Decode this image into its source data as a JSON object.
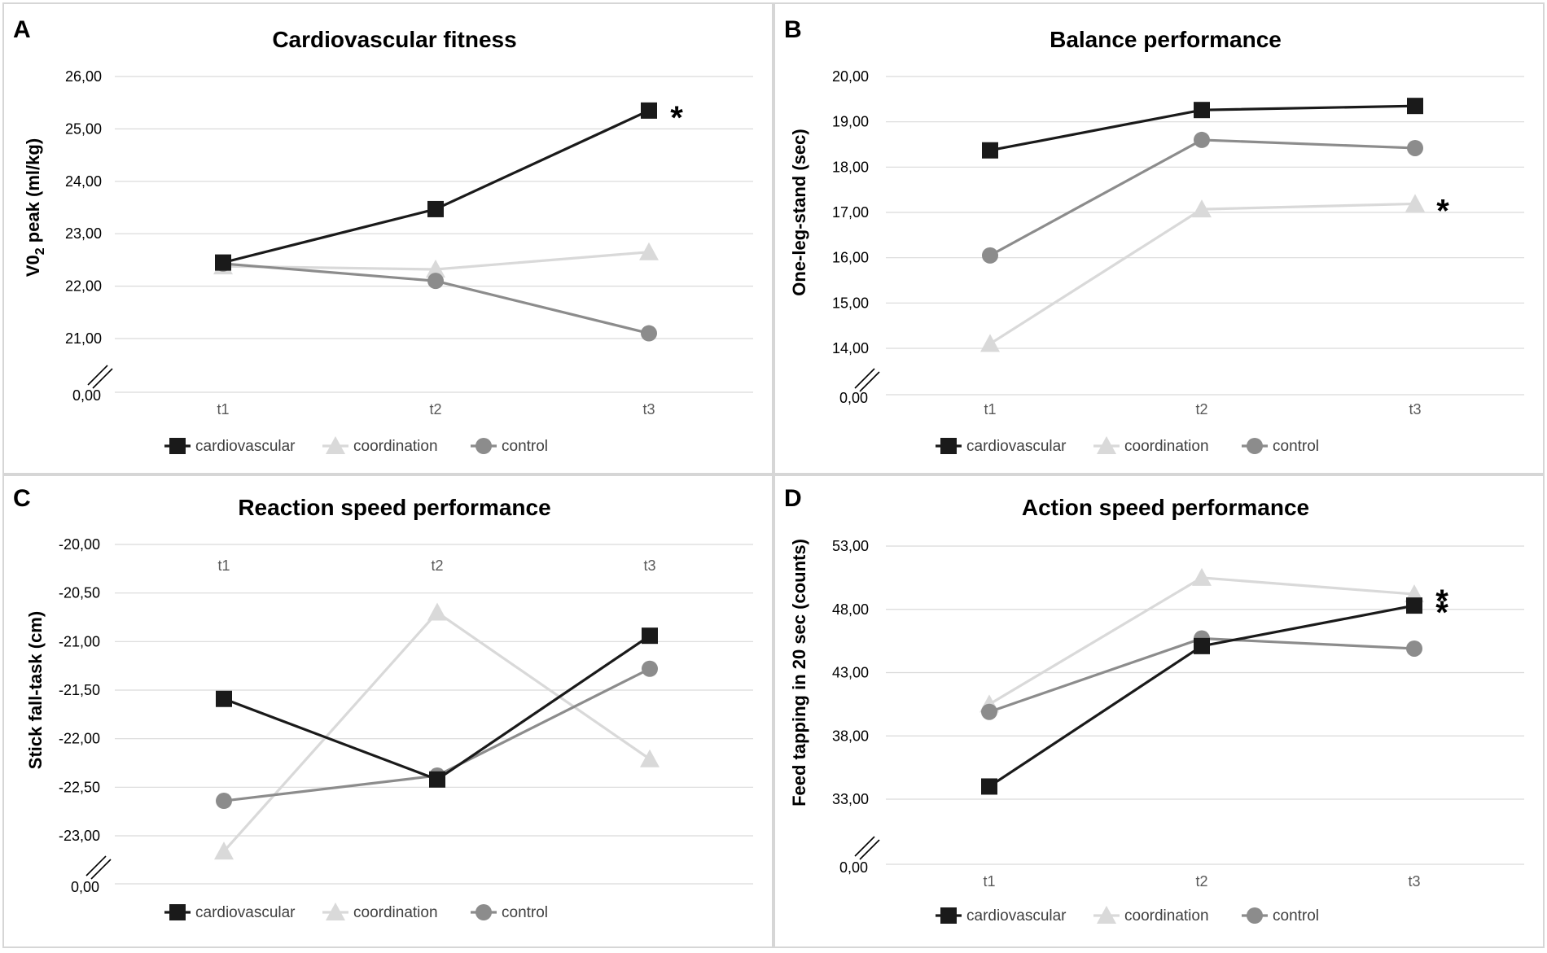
{
  "series_styles": [
    {
      "name": "cardiovascular",
      "color": "#1a1a1a",
      "marker": "square"
    },
    {
      "name": "coordination",
      "color": "#d9d9d9",
      "marker": "triangle"
    },
    {
      "name": "control",
      "color": "#8c8c8c",
      "marker": "circle"
    }
  ],
  "chart_data": [
    {
      "panel": "A",
      "type": "line",
      "title": "Cardiovascular fitness",
      "ylabel": "V0",
      "ylabel_sub": "2",
      "ylabel_rest": " peak (ml/kg)",
      "categories": [
        "t1",
        "t2",
        "t3"
      ],
      "y_ticks": [
        "26,00",
        "25,00",
        "24,00",
        "23,00",
        "22,00",
        "21,00"
      ],
      "y_tick_values": [
        26,
        25,
        24,
        23,
        22,
        21
      ],
      "ylim": [
        21,
        26
      ],
      "broken_axis_label": "0,00",
      "series": [
        {
          "name": "cardiovascular",
          "values": [
            22.45,
            23.47,
            25.35
          ]
        },
        {
          "name": "coordination",
          "values": [
            22.38,
            22.32,
            22.65
          ]
        },
        {
          "name": "control",
          "values": [
            22.43,
            22.1,
            21.1
          ]
        }
      ],
      "annotations": [
        {
          "text": "*",
          "series": "cardiovascular",
          "category": "t3"
        }
      ],
      "category_axis": "bottom",
      "legend": "bottom",
      "legend_labels": [
        "cardiovascular",
        "coordination",
        "control"
      ]
    },
    {
      "panel": "B",
      "type": "line",
      "title": "Balance performance",
      "ylabel": "One-leg-stand (sec)",
      "categories": [
        "t1",
        "t2",
        "t3"
      ],
      "y_ticks": [
        "20,00",
        "19,00",
        "18,00",
        "17,00",
        "16,00",
        "15,00",
        "14,00"
      ],
      "y_tick_values": [
        20,
        19,
        18,
        17,
        16,
        15,
        14
      ],
      "ylim": [
        14,
        20
      ],
      "broken_axis_label": "0,00",
      "series": [
        {
          "name": "cardiovascular",
          "values": [
            18.37,
            19.26,
            19.35
          ]
        },
        {
          "name": "coordination",
          "values": [
            14.1,
            17.07,
            17.19
          ]
        },
        {
          "name": "control",
          "values": [
            16.05,
            18.6,
            18.42
          ]
        }
      ],
      "annotations": [
        {
          "text": "*",
          "series": "coordination",
          "category": "t3"
        }
      ],
      "category_axis": "bottom",
      "legend": "bottom",
      "legend_labels": [
        "cardiovascular",
        "coordination",
        "control"
      ]
    },
    {
      "panel": "C",
      "type": "line",
      "title": "Reaction speed performance",
      "ylabel": "Stick fall-task (cm)",
      "categories": [
        "t1",
        "t2",
        "t3"
      ],
      "y_ticks": [
        "-20,00",
        "-20,50",
        "-21,00",
        "-21,50",
        "-22,00",
        "-22,50",
        "-23,00"
      ],
      "y_tick_values": [
        -20,
        -20.5,
        -21,
        -21.5,
        -22,
        -22.5,
        -23
      ],
      "ylim": [
        -23,
        -20
      ],
      "broken_axis_label": "0,00",
      "series": [
        {
          "name": "cardiovascular",
          "values": [
            -21.59,
            -22.42,
            -20.94
          ]
        },
        {
          "name": "coordination",
          "values": [
            -23.16,
            -20.7,
            -22.21
          ]
        },
        {
          "name": "control",
          "values": [
            -22.64,
            -22.38,
            -21.28
          ]
        }
      ],
      "annotations": [],
      "category_axis": "top",
      "legend": "bottom",
      "legend_labels": [
        "cardiovascular",
        "coordination",
        "control"
      ]
    },
    {
      "panel": "D",
      "type": "line",
      "title": "Action speed performance",
      "ylabel": "Feed tapping in 20 sec (counts)",
      "categories": [
        "t1",
        "t2",
        "t3"
      ],
      "y_ticks": [
        "53,00",
        "48,00",
        "43,00",
        "38,00",
        "33,00"
      ],
      "y_tick_values": [
        53,
        48,
        43,
        38,
        33
      ],
      "ylim": [
        33,
        53
      ],
      "broken_axis_label": "0,00",
      "series": [
        {
          "name": "cardiovascular",
          "values": [
            34.0,
            45.1,
            48.3
          ]
        },
        {
          "name": "coordination",
          "values": [
            40.5,
            50.5,
            49.2
          ]
        },
        {
          "name": "control",
          "values": [
            39.9,
            45.7,
            44.9
          ]
        }
      ],
      "annotations": [
        {
          "text": "*",
          "series": "coordination",
          "category": "t3"
        },
        {
          "text": "*",
          "series": "cardiovascular",
          "category": "t3"
        }
      ],
      "category_axis": "bottom",
      "legend": "bottom",
      "legend_labels": [
        "cardiovascular",
        "coordination",
        "control"
      ]
    }
  ]
}
